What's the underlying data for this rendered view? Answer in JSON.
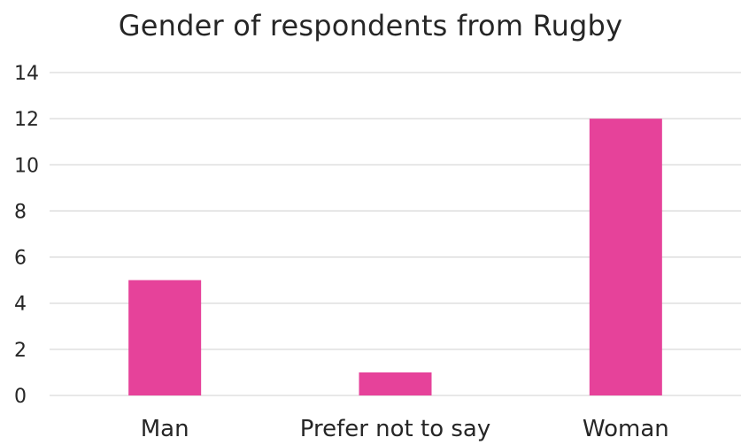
{
  "chart_data": {
    "type": "bar",
    "title": "Gender of respondents from Rugby",
    "categories": [
      "Man",
      "Prefer not to say",
      "Woman"
    ],
    "values": [
      5,
      1,
      12
    ],
    "ylim": [
      0,
      14
    ],
    "yticks": [
      0,
      2,
      4,
      6,
      8,
      10,
      12,
      14
    ],
    "xlabel": "",
    "ylabel": "",
    "grid": true,
    "legend": "none",
    "bar_color": "#E6429A",
    "grid_color": "#D9D9D9"
  }
}
